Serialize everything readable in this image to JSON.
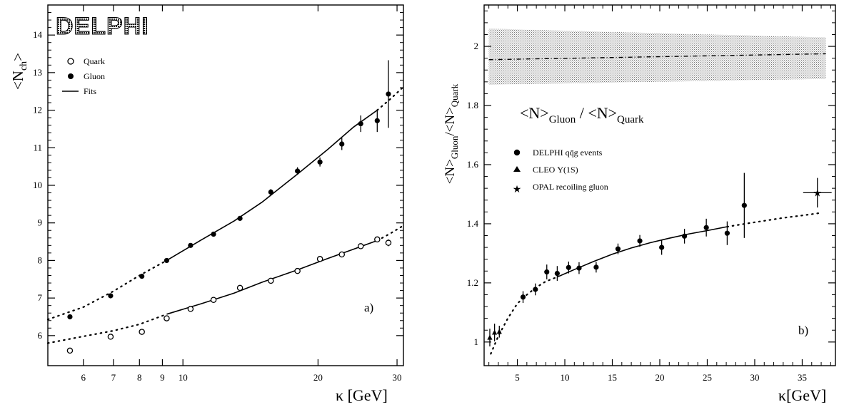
{
  "chart_data": [
    {
      "type": "scatter",
      "panel_label": "a)",
      "logo_text": "DELPHI",
      "xlabel": "κ [GeV]",
      "ylabel": "<N",
      "ylabel_sub": "ch",
      "ylabel_end": ">",
      "x_scale": "log",
      "xlim": [
        5,
        31
      ],
      "ylim": [
        5.2,
        14.8
      ],
      "x_ticks": [
        6,
        7,
        8,
        9,
        10,
        20,
        30
      ],
      "x_tick_labels": [
        "6",
        "7",
        "8",
        "9",
        "10",
        "20",
        "30"
      ],
      "y_ticks": [
        6,
        7,
        8,
        9,
        10,
        11,
        12,
        13,
        14
      ],
      "y_tick_labels": [
        "6",
        "7",
        "8",
        "9",
        "10",
        "11",
        "12",
        "13",
        "14"
      ],
      "legend": {
        "position": "top-left",
        "entries": [
          {
            "label": "Quark",
            "marker": "open-circle"
          },
          {
            "label": "Gluon",
            "marker": "filled-circle"
          },
          {
            "label": "Fits",
            "marker": "line"
          }
        ]
      },
      "series": [
        {
          "name": "Gluon",
          "marker": "filled-circle",
          "x": [
            5.6,
            6.9,
            8.1,
            9.2,
            10.4,
            11.7,
            13.4,
            15.7,
            18.0,
            20.2,
            22.6,
            24.9,
            27.1,
            28.7
          ],
          "y": [
            6.5,
            7.06,
            7.58,
            8.0,
            8.4,
            8.7,
            9.12,
            9.82,
            10.38,
            10.62,
            11.1,
            11.64,
            11.72,
            12.43
          ],
          "err": [
            0.05,
            0.05,
            0.05,
            0.05,
            0.05,
            0.06,
            0.06,
            0.08,
            0.1,
            0.12,
            0.16,
            0.22,
            0.3,
            0.9
          ]
        },
        {
          "name": "Quark",
          "marker": "open-circle",
          "x": [
            5.6,
            6.9,
            8.1,
            9.2,
            10.4,
            11.7,
            13.4,
            15.7,
            18.0,
            20.2,
            22.6,
            24.9,
            27.1,
            28.7
          ],
          "y": [
            5.6,
            5.97,
            6.1,
            6.46,
            6.71,
            6.95,
            7.27,
            7.46,
            7.72,
            8.04,
            8.16,
            8.38,
            8.56,
            8.47
          ],
          "err": [
            0.05,
            0.06,
            0.07,
            0.07,
            0.06,
            0.06,
            0.06,
            0.05,
            0.05,
            0.05,
            0.05,
            0.05,
            0.05,
            0.09
          ]
        }
      ],
      "fits": [
        {
          "style": "dotted",
          "x": [
            5,
            6,
            7,
            8,
            9.2
          ],
          "y": [
            6.43,
            6.76,
            7.18,
            7.6,
            8.0
          ]
        },
        {
          "style": "solid",
          "x": [
            9.2,
            11,
            13,
            15,
            18,
            21,
            24,
            27.1
          ],
          "y": [
            8.0,
            8.55,
            9.05,
            9.55,
            10.3,
            10.95,
            11.55,
            12.0
          ]
        },
        {
          "style": "dotted",
          "x": [
            27.1,
            29,
            31
          ],
          "y": [
            12.0,
            12.3,
            12.62
          ]
        },
        {
          "style": "dotted",
          "x": [
            5,
            6,
            7,
            8,
            9.2
          ],
          "y": [
            5.8,
            5.98,
            6.13,
            6.3,
            6.57
          ]
        },
        {
          "style": "solid",
          "x": [
            9.2,
            11,
            13,
            15,
            18,
            21,
            24,
            27.1
          ],
          "y": [
            6.57,
            6.85,
            7.13,
            7.42,
            7.75,
            8.05,
            8.3,
            8.53
          ]
        },
        {
          "style": "dotted",
          "x": [
            27.1,
            29,
            31
          ],
          "y": [
            8.53,
            8.72,
            8.93
          ]
        }
      ]
    },
    {
      "type": "scatter",
      "panel_label": "b)",
      "xlabel": "κ[GeV]",
      "ylabel": "<N>",
      "ylabel_sub1": "Gluon",
      "ylabel_mid": "/<N>",
      "ylabel_sub2": "Quark",
      "annotation": "<N>",
      "annotation_sub1": "Gluon",
      "annotation_mid": " / <N>",
      "annotation_sub2": "Quark",
      "xlim": [
        1.5,
        38.5
      ],
      "ylim": [
        0.92,
        2.14
      ],
      "x_ticks": [
        5,
        10,
        15,
        20,
        25,
        30,
        35
      ],
      "x_tick_labels": [
        "5",
        "10",
        "15",
        "20",
        "25",
        "30",
        "35"
      ],
      "y_ticks": [
        1,
        1.2,
        1.4,
        1.6,
        1.8,
        2
      ],
      "y_tick_labels": [
        "1",
        "1.2",
        "1.4",
        "1.6",
        "1.8",
        "2"
      ],
      "band": {
        "x": [
          2,
          37.5
        ],
        "ymin": [
          1.87,
          1.89
        ],
        "ymax": [
          2.06,
          2.03
        ],
        "center": [
          1.955,
          1.975
        ]
      },
      "legend": {
        "position": "middle-left",
        "entries": [
          {
            "label": "DELPHI qq̄g events",
            "marker": "filled-circle"
          },
          {
            "label": "CLEO Υ(1S)",
            "marker": "triangle"
          },
          {
            "label": "OPAL recoiling gluon",
            "marker": "star"
          }
        ]
      },
      "series": [
        {
          "name": "DELPHI qq̄g events",
          "marker": "filled-circle",
          "x": [
            5.6,
            6.9,
            8.1,
            9.2,
            10.4,
            11.5,
            13.3,
            15.6,
            17.9,
            20.2,
            22.6,
            24.9,
            27.1,
            28.9
          ],
          "y": [
            1.152,
            1.178,
            1.237,
            1.232,
            1.252,
            1.25,
            1.253,
            1.315,
            1.342,
            1.32,
            1.358,
            1.387,
            1.368,
            1.462
          ],
          "err": [
            0.02,
            0.02,
            0.025,
            0.025,
            0.02,
            0.02,
            0.018,
            0.018,
            0.02,
            0.025,
            0.025,
            0.03,
            0.04,
            0.11
          ]
        },
        {
          "name": "CLEO Υ(1S)",
          "marker": "triangle",
          "x": [
            2.1,
            2.6,
            3.1
          ],
          "y": [
            1.015,
            1.032,
            1.035
          ],
          "err": [
            0.03,
            0.03,
            0.02
          ]
        },
        {
          "name": "OPAL recoiling gluon",
          "marker": "star",
          "x": [
            36.6
          ],
          "y": [
            1.505
          ],
          "err": [
            0.05
          ],
          "xerr": [
            1.5
          ]
        }
      ],
      "fits": [
        {
          "style": "dotted",
          "x": [
            2.2,
            3,
            4,
            5,
            6,
            7,
            8,
            9.2
          ],
          "y": [
            0.96,
            1.02,
            1.08,
            1.13,
            1.16,
            1.185,
            1.205,
            1.22
          ]
        },
        {
          "style": "solid",
          "x": [
            9.2,
            11,
            13,
            15,
            17,
            19,
            21,
            23,
            25,
            27.1
          ],
          "y": [
            1.22,
            1.245,
            1.272,
            1.297,
            1.318,
            1.336,
            1.351,
            1.365,
            1.377,
            1.39
          ]
        },
        {
          "style": "dotted",
          "x": [
            27.1,
            29,
            31,
            33,
            35,
            37
          ],
          "y": [
            1.39,
            1.4,
            1.41,
            1.42,
            1.428,
            1.437
          ]
        }
      ]
    }
  ]
}
